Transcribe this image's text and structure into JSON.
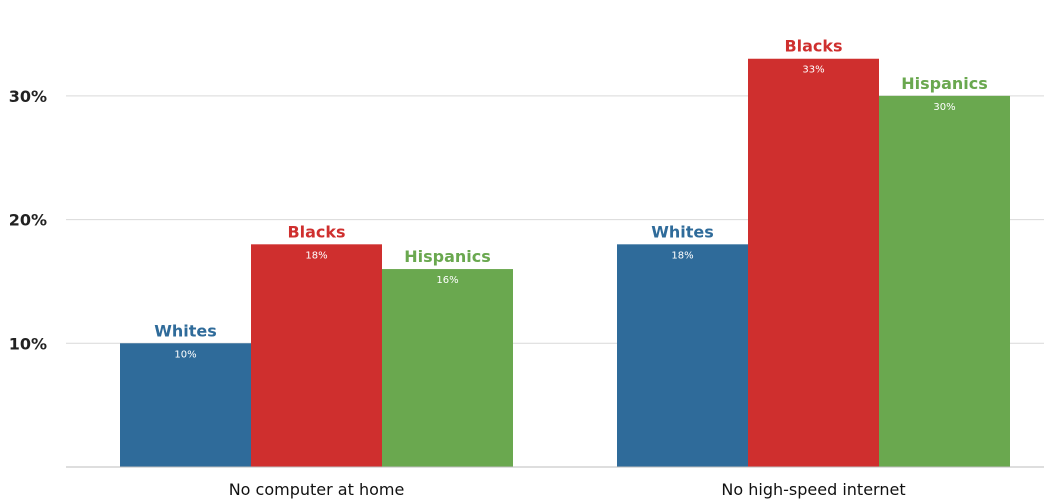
{
  "chart_data": {
    "type": "bar",
    "categories": [
      "No computer at home",
      "No high-speed internet"
    ],
    "series": [
      {
        "name": "Whites",
        "values": [
          10,
          18
        ],
        "color": "#2f6b9a",
        "value_labels": [
          "10%",
          "18%"
        ]
      },
      {
        "name": "Blacks",
        "values": [
          18,
          33
        ],
        "color": "#cf2f2e",
        "value_labels": [
          "18%",
          "33%"
        ]
      },
      {
        "name": "Hispanics",
        "values": [
          16,
          30
        ],
        "color": "#6aa84f",
        "value_labels": [
          "16%",
          "30%"
        ]
      }
    ],
    "y_ticks": [
      10,
      20,
      30
    ],
    "y_tick_labels": [
      "10%",
      "20%",
      "30%"
    ],
    "ylim": [
      0,
      35
    ],
    "grid": true,
    "legend": "none",
    "series_label_colors": {
      "Whites": "#2f6b9a",
      "Blacks": "#cf2f2e",
      "Hispanics": "#6aa84f"
    }
  }
}
